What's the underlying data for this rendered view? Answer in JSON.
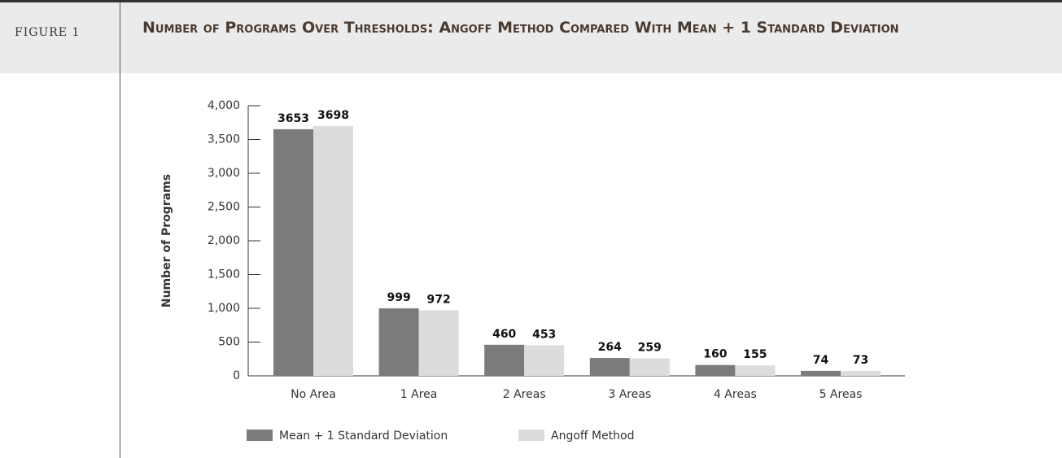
{
  "figure_label": "FIGURE 1",
  "chart_data": {
    "type": "bar",
    "title": "Number of Programs Over Thresholds: Angoff Method Compared With Mean + 1 Standard Deviation",
    "y_label": "Number of Programs",
    "categories": [
      "No Area",
      "1 Area",
      "2 Areas",
      "3 Areas",
      "4 Areas",
      "5 Areas"
    ],
    "series": [
      {
        "name": "Mean + 1 Standard Deviation",
        "color": "#7b7b7b",
        "values": [
          3653,
          999,
          460,
          264,
          160,
          74
        ]
      },
      {
        "name": "Angoff Method",
        "color": "#dcdcdc",
        "values": [
          3698,
          972,
          453,
          259,
          155,
          73
        ]
      }
    ],
    "ylim": [
      0,
      4000
    ],
    "yticks": [
      0,
      500,
      {
        "value": 1000,
        "label": "1,000"
      },
      {
        "value": 1500,
        "label": "1,500"
      },
      {
        "value": 2000,
        "label": "2,000"
      },
      {
        "value": 2500,
        "label": "2,500"
      },
      {
        "value": 3000,
        "label": "3,000"
      },
      {
        "value": 3500,
        "label": "3,500"
      },
      {
        "value": 4000,
        "label": "4,000"
      }
    ]
  }
}
